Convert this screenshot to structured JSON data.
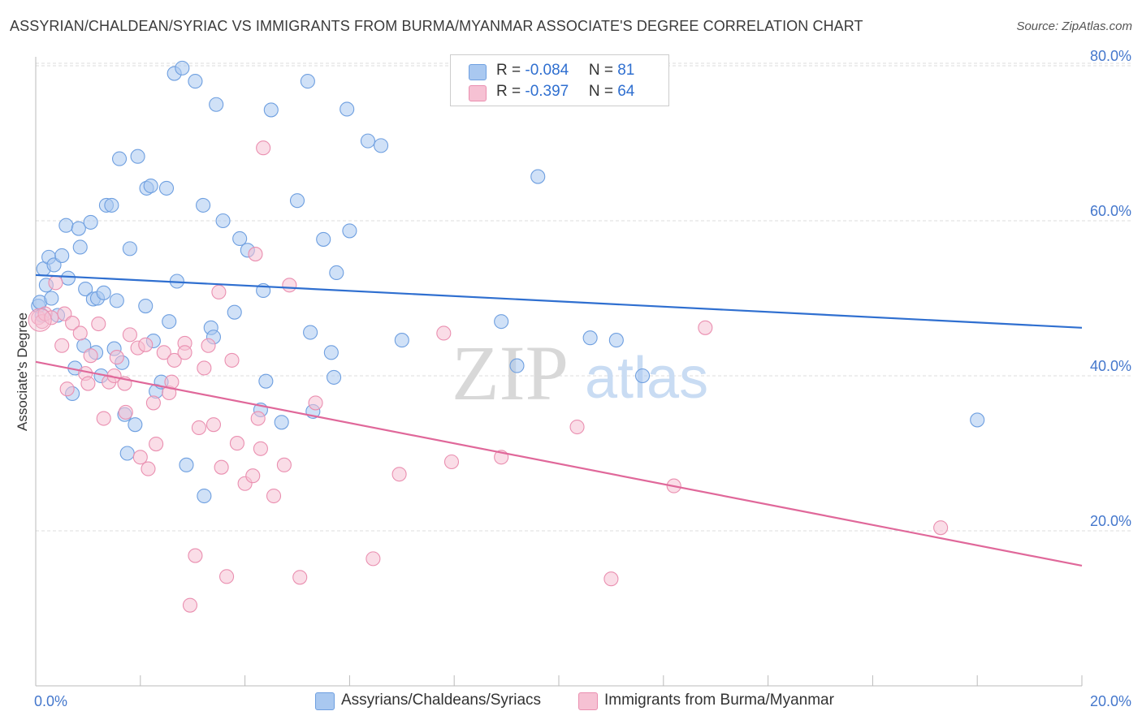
{
  "title": "ASSYRIAN/CHALDEAN/SYRIAC VS IMMIGRANTS FROM BURMA/MYANMAR ASSOCIATE'S DEGREE CORRELATION CHART",
  "source": "Source: ZipAtlas.com",
  "watermark": {
    "zip": "ZIP",
    "atlas": "atlas"
  },
  "legend": {
    "rows": [
      {
        "r_label": "R = ",
        "r_value": "-0.084",
        "n_label": "N = ",
        "n_value": "81"
      },
      {
        "r_label": "R = ",
        "r_value": "-0.397",
        "n_label": "N = ",
        "n_value": "64"
      }
    ]
  },
  "colors": {
    "blue_fill": "#a9c8f0",
    "blue_stroke": "#6e9fe0",
    "blue_line": "#2f6fd0",
    "pink_fill": "#f6c1d3",
    "pink_stroke": "#ea8fb0",
    "pink_line": "#e0689a",
    "grid": "#dcdcdc",
    "tick_text": "#4477cc"
  },
  "chart_data": {
    "type": "scatter",
    "title": "ASSYRIAN/CHALDEAN/SYRIAC VS IMMIGRANTS FROM BURMA/MYANMAR ASSOCIATE'S DEGREE CORRELATION CHART",
    "xlabel": "",
    "ylabel": "Associate's Degree",
    "xlim": [
      0,
      20
    ],
    "ylim": [
      0,
      82
    ],
    "x_ticks": [
      "0.0%",
      "20.0%"
    ],
    "y_ticks": [
      {
        "value": 20,
        "label": "20.0%"
      },
      {
        "value": 40,
        "label": "40.0%"
      },
      {
        "value": 60,
        "label": "60.0%"
      },
      {
        "value": 80,
        "label": "80.0%"
      }
    ],
    "grid": true,
    "legend_position": "bottom",
    "series": [
      {
        "name": "Assyrians/Chaldeans/Syriacs",
        "color": "#6e9fe0",
        "trend": {
          "x": [
            0,
            20
          ],
          "y": [
            53.0,
            46.2
          ]
        },
        "points": [
          [
            0.05,
            49.0
          ],
          [
            0.08,
            49.5
          ],
          [
            0.12,
            47.8
          ],
          [
            0.15,
            53.8
          ],
          [
            0.2,
            51.7
          ],
          [
            0.25,
            55.3
          ],
          [
            0.3,
            50.0
          ],
          [
            0.35,
            54.3
          ],
          [
            0.42,
            47.8
          ],
          [
            0.5,
            55.5
          ],
          [
            0.58,
            59.4
          ],
          [
            0.62,
            52.6
          ],
          [
            0.7,
            37.7
          ],
          [
            0.75,
            41.0
          ],
          [
            0.82,
            59.0
          ],
          [
            0.85,
            56.6
          ],
          [
            0.92,
            43.9
          ],
          [
            0.95,
            51.2
          ],
          [
            1.05,
            59.8
          ],
          [
            1.1,
            49.9
          ],
          [
            1.15,
            43.0
          ],
          [
            1.18,
            50.0
          ],
          [
            1.25,
            40.0
          ],
          [
            1.3,
            50.7
          ],
          [
            1.35,
            62.0
          ],
          [
            1.45,
            62.0
          ],
          [
            1.5,
            43.5
          ],
          [
            1.55,
            49.7
          ],
          [
            1.6,
            68.0
          ],
          [
            1.65,
            41.7
          ],
          [
            1.7,
            35.0
          ],
          [
            1.75,
            30.0
          ],
          [
            1.8,
            56.4
          ],
          [
            1.9,
            33.7
          ],
          [
            1.95,
            68.3
          ],
          [
            2.1,
            49.0
          ],
          [
            2.12,
            64.2
          ],
          [
            2.2,
            64.5
          ],
          [
            2.25,
            44.5
          ],
          [
            2.3,
            38.0
          ],
          [
            2.4,
            39.2
          ],
          [
            2.5,
            64.2
          ],
          [
            2.55,
            47.0
          ],
          [
            2.65,
            79.0
          ],
          [
            2.7,
            52.2
          ],
          [
            2.8,
            79.7
          ],
          [
            2.88,
            28.5
          ],
          [
            3.05,
            78.0
          ],
          [
            3.2,
            62.0
          ],
          [
            3.22,
            24.5
          ],
          [
            3.35,
            46.2
          ],
          [
            3.4,
            45.0
          ],
          [
            3.45,
            75.0
          ],
          [
            3.58,
            60.0
          ],
          [
            3.8,
            48.2
          ],
          [
            3.9,
            57.7
          ],
          [
            4.05,
            56.2
          ],
          [
            4.3,
            35.6
          ],
          [
            4.35,
            51.0
          ],
          [
            4.4,
            39.3
          ],
          [
            4.5,
            74.3
          ],
          [
            4.7,
            34.0
          ],
          [
            5.0,
            62.6
          ],
          [
            5.2,
            78.0
          ],
          [
            5.25,
            45.6
          ],
          [
            5.3,
            35.4
          ],
          [
            5.5,
            57.6
          ],
          [
            5.65,
            43.0
          ],
          [
            5.7,
            39.8
          ],
          [
            5.75,
            53.3
          ],
          [
            5.95,
            74.4
          ],
          [
            6.0,
            58.7
          ],
          [
            6.35,
            70.3
          ],
          [
            6.6,
            69.7
          ],
          [
            7.0,
            44.6
          ],
          [
            8.9,
            47.0
          ],
          [
            9.2,
            41.3
          ],
          [
            9.6,
            65.7
          ],
          [
            10.6,
            44.9
          ],
          [
            11.1,
            44.6
          ],
          [
            11.6,
            40.0
          ],
          [
            18.0,
            34.3
          ]
        ]
      },
      {
        "name": "Immigrants from Burma/Myanmar",
        "color": "#ea8fb0",
        "trend": {
          "x": [
            0,
            20
          ],
          "y": [
            41.8,
            15.5
          ]
        },
        "points": [
          [
            0.05,
            47.5
          ],
          [
            0.12,
            47.0
          ],
          [
            0.18,
            48.0
          ],
          [
            0.3,
            47.5
          ],
          [
            0.38,
            52.0
          ],
          [
            0.5,
            43.9
          ],
          [
            0.55,
            48.0
          ],
          [
            0.6,
            38.3
          ],
          [
            0.7,
            46.8
          ],
          [
            0.85,
            45.5
          ],
          [
            0.95,
            40.3
          ],
          [
            1.0,
            39.0
          ],
          [
            1.05,
            42.6
          ],
          [
            1.2,
            46.7
          ],
          [
            1.3,
            34.5
          ],
          [
            1.4,
            39.2
          ],
          [
            1.5,
            40.0
          ],
          [
            1.55,
            42.4
          ],
          [
            1.7,
            39.0
          ],
          [
            1.72,
            35.3
          ],
          [
            1.8,
            45.3
          ],
          [
            1.95,
            43.6
          ],
          [
            2.0,
            29.5
          ],
          [
            2.1,
            44.0
          ],
          [
            2.15,
            28.0
          ],
          [
            2.25,
            36.5
          ],
          [
            2.3,
            31.2
          ],
          [
            2.45,
            43.0
          ],
          [
            2.55,
            37.8
          ],
          [
            2.6,
            39.2
          ],
          [
            2.65,
            42.0
          ],
          [
            2.85,
            44.2
          ],
          [
            2.85,
            43.0
          ],
          [
            2.95,
            10.4
          ],
          [
            3.05,
            16.8
          ],
          [
            3.12,
            33.3
          ],
          [
            3.22,
            41.0
          ],
          [
            3.3,
            43.9
          ],
          [
            3.4,
            33.7
          ],
          [
            3.5,
            50.8
          ],
          [
            3.55,
            28.2
          ],
          [
            3.65,
            14.1
          ],
          [
            3.75,
            42.0
          ],
          [
            3.85,
            31.3
          ],
          [
            4.0,
            26.1
          ],
          [
            4.15,
            27.1
          ],
          [
            4.2,
            55.7
          ],
          [
            4.25,
            34.5
          ],
          [
            4.3,
            30.6
          ],
          [
            4.35,
            69.4
          ],
          [
            4.55,
            24.5
          ],
          [
            4.75,
            28.5
          ],
          [
            4.85,
            51.7
          ],
          [
            5.05,
            14.0
          ],
          [
            5.35,
            36.5
          ],
          [
            6.45,
            16.4
          ],
          [
            6.95,
            27.3
          ],
          [
            7.8,
            45.5
          ],
          [
            7.95,
            28.9
          ],
          [
            8.9,
            29.5
          ],
          [
            10.35,
            33.4
          ],
          [
            11.0,
            13.8
          ],
          [
            12.2,
            25.8
          ],
          [
            12.8,
            46.2
          ],
          [
            17.3,
            20.4
          ]
        ]
      }
    ]
  },
  "bottom_legend": [
    {
      "label": "Assyrians/Chaldeans/Syriacs"
    },
    {
      "label": "Immigrants from Burma/Myanmar"
    }
  ]
}
